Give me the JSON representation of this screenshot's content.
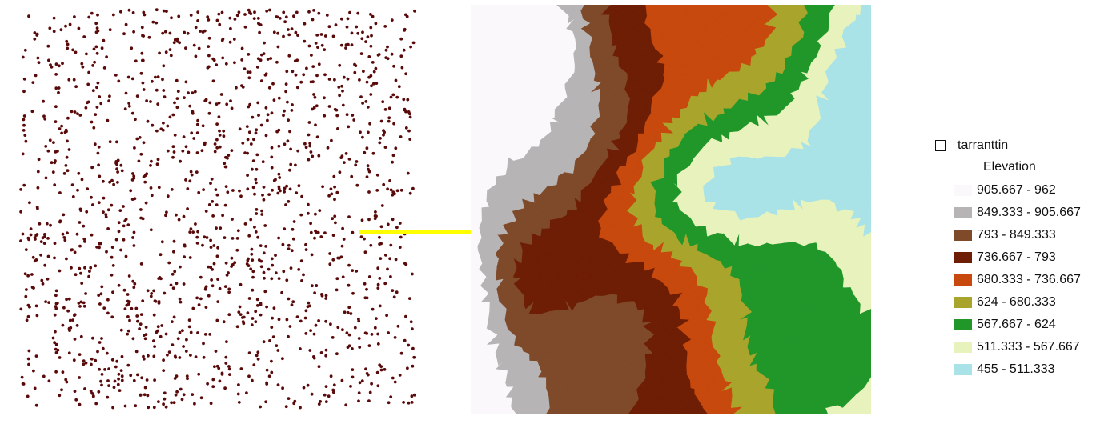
{
  "legend": {
    "layer_name": "tarranttin",
    "field_label": "Elevation",
    "classes": [
      {
        "label": "905.667 - 962",
        "color": "#FBF8FB"
      },
      {
        "label": "849.333 - 905.667",
        "color": "#B7B4B6"
      },
      {
        "label": "793 - 849.333",
        "color": "#7F4A2A"
      },
      {
        "label": "736.667 - 793",
        "color": "#6E1E05"
      },
      {
        "label": "680.333 - 736.667",
        "color": "#C7490D"
      },
      {
        "label": "624 - 680.333",
        "color": "#A9A42C"
      },
      {
        "label": "567.667 - 624",
        "color": "#21972A"
      },
      {
        "label": "511.333 - 567.667",
        "color": "#E8F2BC"
      },
      {
        "label": "455 - 511.333",
        "color": "#A9E3E7"
      }
    ]
  },
  "colors": {
    "point_color": "#5A0A0A",
    "arrow_color": "#FFFF00"
  }
}
